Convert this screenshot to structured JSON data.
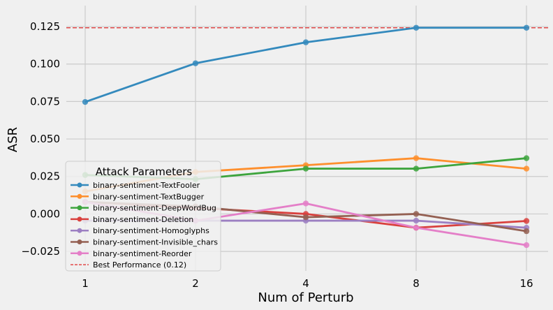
{
  "chart_data": {
    "type": "line",
    "xlabel": "Num of Perturb",
    "ylabel": "ASR",
    "x_categories": [
      "1",
      "2",
      "4",
      "8",
      "16"
    ],
    "ylim": [
      -0.038,
      0.139
    ],
    "y_ticks": [
      -0.025,
      0.0,
      0.025,
      0.05,
      0.075,
      0.1,
      0.125
    ],
    "y_tick_labels": [
      "−0.025",
      "0.000",
      "0.025",
      "0.050",
      "0.075",
      "0.100",
      "0.125"
    ],
    "grid": true,
    "legend": {
      "title": "Attack Parameters",
      "placement": "lower-left"
    },
    "series": [
      {
        "name": "binary-sentiment-TextFooler",
        "color": "#348abd",
        "values": [
          0.0747,
          0.1005,
          0.1145,
          0.1242,
          0.1242
        ]
      },
      {
        "name": "binary-sentiment-TextBugger",
        "color": "#fe8f2d",
        "values": [
          0.015,
          0.028,
          0.0325,
          0.0372,
          0.0302
        ]
      },
      {
        "name": "binary-sentiment-DeepWordBug",
        "color": "#3da43d",
        "values": [
          0.026,
          0.0232,
          0.0302,
          0.0302,
          0.0372
        ]
      },
      {
        "name": "binary-sentiment-Deletion",
        "color": "#d9413e",
        "values": [
          0.008,
          0.004,
          0.0,
          -0.0092,
          -0.0047
        ]
      },
      {
        "name": "binary-sentiment-Homoglyphs",
        "color": "#9c7fc2",
        "values": [
          -0.0045,
          -0.0045,
          -0.0045,
          -0.0045,
          -0.0092
        ]
      },
      {
        "name": "binary-sentiment-Invisible_chars",
        "color": "#946052",
        "values": [
          0.008,
          0.005,
          -0.0022,
          0.0,
          -0.0115
        ]
      },
      {
        "name": "binary-sentiment-Reorder",
        "color": "#e47fc8",
        "values": [
          0.008,
          -0.0045,
          0.007,
          -0.0092,
          -0.0208
        ]
      }
    ],
    "reference_line": {
      "name": "Best Performance (0.12)",
      "value": 0.1242,
      "color": "#e24a4a",
      "style": "dashed"
    }
  }
}
